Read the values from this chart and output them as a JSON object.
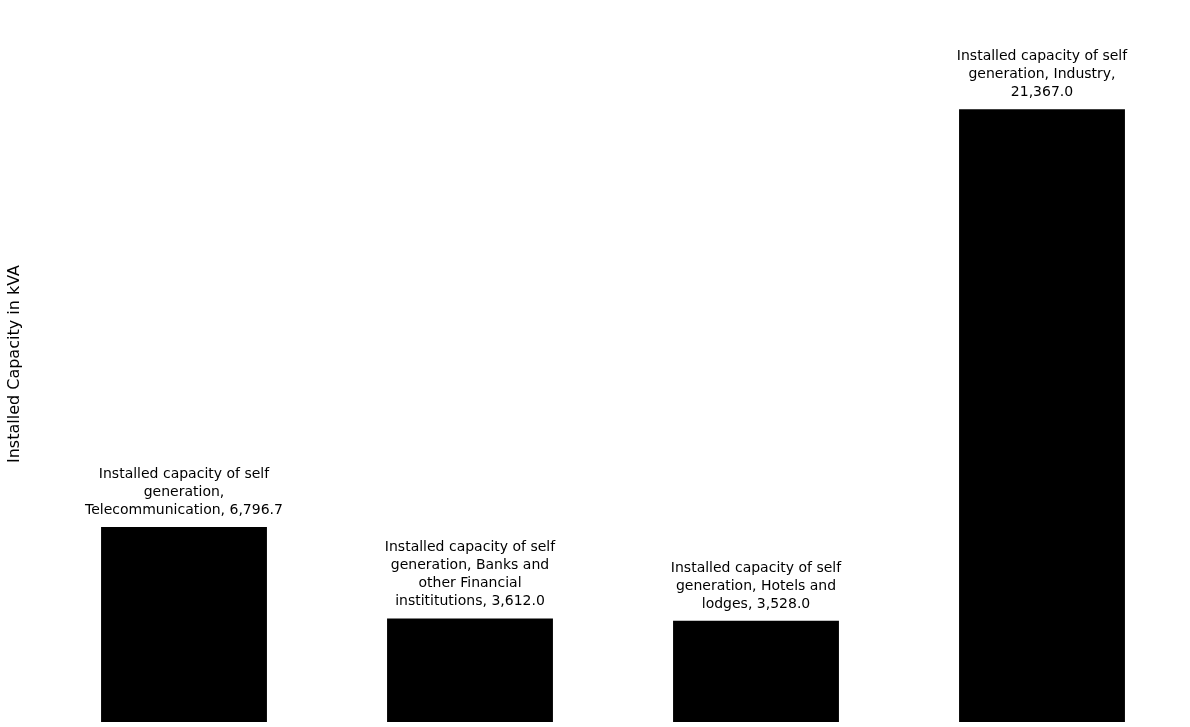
{
  "chart_data": {
    "type": "bar",
    "ylabel": "Installed Capacity in kVA",
    "categories": [
      null,
      null,
      null,
      null
    ],
    "series": [
      {
        "color": "#000000",
        "values": [
          6796.7,
          3612.0,
          3528.0,
          21367.0
        ],
        "value_labels": [
          "Installed capacity of self generation, Telecommunication, 6,796.7",
          "Installed capacity of self generation, Banks and other Financial instititutions, 3,612.0",
          "Installed capacity of self generation, Hotels and lodges, 3,528.0",
          "Installed capacity of self generation, Industry, 21,367.0"
        ]
      }
    ],
    "tick_labels": false
  }
}
